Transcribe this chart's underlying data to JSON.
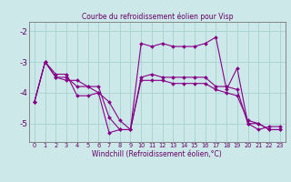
{
  "title": "Courbe du refroidissement éolien pour Visp",
  "xlabel": "Windchill (Refroidissement éolien,°C)",
  "x": [
    0,
    1,
    2,
    3,
    4,
    5,
    6,
    7,
    8,
    9,
    10,
    11,
    12,
    13,
    14,
    15,
    16,
    17,
    18,
    19,
    20,
    21,
    22,
    23
  ],
  "line1": [
    -4.3,
    -3.0,
    -3.4,
    -3.4,
    -4.1,
    -4.1,
    -4.0,
    -5.3,
    -5.2,
    -5.2,
    -2.4,
    -2.5,
    -2.4,
    -2.5,
    -2.5,
    -2.5,
    -2.4,
    -2.2,
    -3.9,
    -3.2,
    -5.0,
    -5.2,
    -5.1,
    -5.1
  ],
  "line2": [
    -4.3,
    -3.0,
    -3.5,
    -3.5,
    -3.8,
    -3.8,
    -3.8,
    -4.8,
    -5.2,
    -5.2,
    -3.5,
    -3.4,
    -3.5,
    -3.5,
    -3.5,
    -3.5,
    -3.5,
    -3.8,
    -3.8,
    -3.9,
    -5.0,
    -5.0,
    -5.2,
    -5.2
  ],
  "line3": [
    -4.3,
    -3.0,
    -3.5,
    -3.6,
    -3.6,
    -3.8,
    -4.0,
    -4.3,
    -4.9,
    -5.2,
    -3.6,
    -3.6,
    -3.6,
    -3.7,
    -3.7,
    -3.7,
    -3.7,
    -3.9,
    -4.0,
    -4.1,
    -4.9,
    -5.0,
    -5.2,
    -5.2
  ],
  "color": "#880088",
  "bg_color": "#cce8e8",
  "grid_color": "#aad4d4",
  "ylim": [
    -5.6,
    -1.7
  ],
  "yticks": [
    -5,
    -4,
    -3,
    -2
  ],
  "xlim": [
    -0.5,
    23.5
  ]
}
